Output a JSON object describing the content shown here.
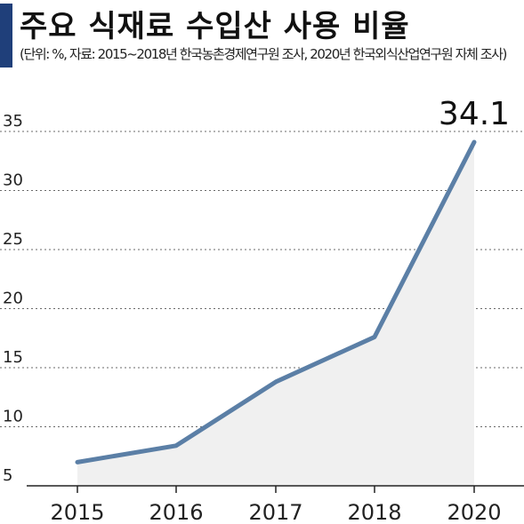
{
  "header": {
    "title": "주요 식재료 수입산 사용 비율",
    "subtitle": "(단위: %, 자료: 2015~2018년 한국농촌경제연구원 조사, 2020년 한국외식산업연구원 자체 조사)"
  },
  "colors": {
    "line": "#5b7fa6",
    "area": "#f0f0f0",
    "accent_bar": "#1f3f7a"
  },
  "chart_data": {
    "type": "area",
    "title": "주요 식재료 수입산 사용 비율",
    "subtitle": "(단위: %, 자료: 2015~2018년 한국농촌경제연구원 조사, 2020년 한국외식산업연구원 자체 조사)",
    "xlabel": "",
    "ylabel": "",
    "x": [
      "2015",
      "2016",
      "2017",
      "2018",
      "2020"
    ],
    "series": [
      {
        "values": [
          7.0,
          8.4,
          13.8,
          17.6,
          34.1
        ]
      }
    ],
    "ylim": [
      5,
      35
    ],
    "yticks": [
      5,
      10,
      15,
      20,
      25,
      30,
      35
    ],
    "grid": "horizontal-dashed",
    "annotation": {
      "x": "2020",
      "value": 34.1,
      "label": "34.1"
    },
    "legend": "none"
  }
}
